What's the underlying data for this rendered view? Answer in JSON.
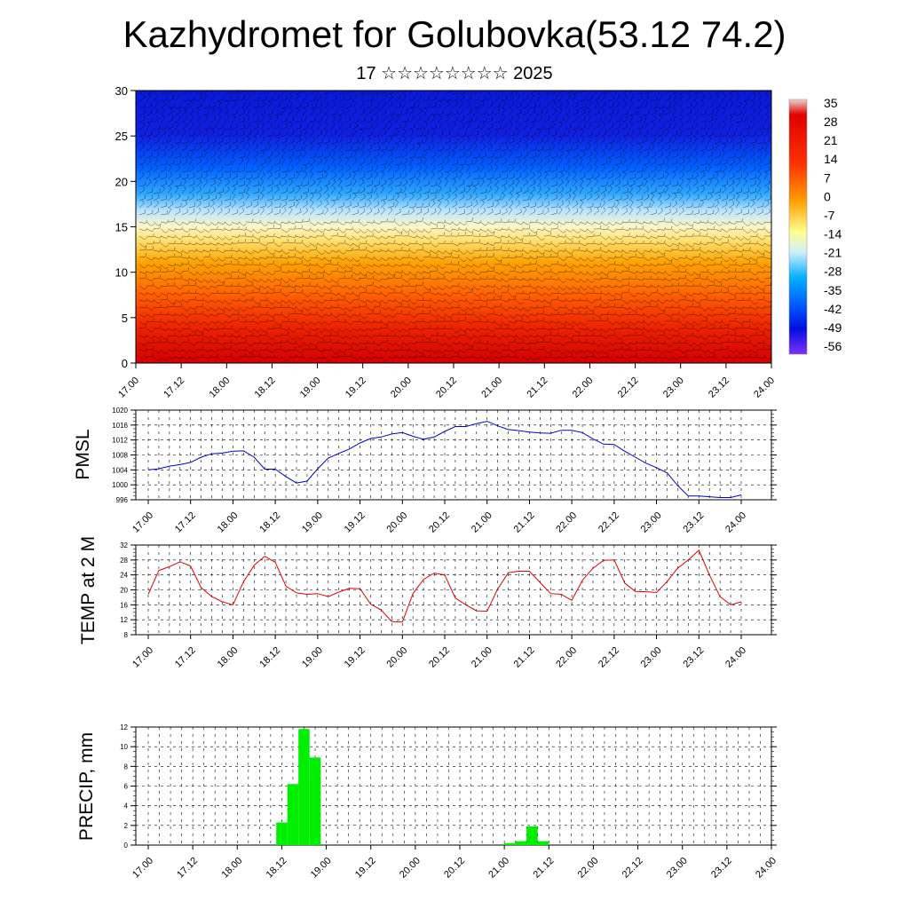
{
  "title": "Kazhydromet for Golubovka(53.12 74.2)",
  "subtitle": "17 ☆☆☆☆☆☆☆☆ 2025",
  "time_labels": [
    "17.00",
    "17.12",
    "18.00",
    "18.12",
    "19.00",
    "19.12",
    "20.00",
    "20.12",
    "21.00",
    "21.12",
    "22.00",
    "22.12",
    "23.00",
    "23.12",
    "24.00"
  ],
  "colors": {
    "pmsl_line": "#0000cc",
    "temp_line": "#dd0000",
    "precip_bar": "#00ee00",
    "grid": "#000000"
  },
  "chart_data": [
    {
      "type": "heatmap",
      "name": "vertical-cross-section",
      "ylim": [
        0,
        30
      ],
      "yticks": [
        0,
        5,
        10,
        15,
        20,
        25,
        30
      ],
      "colorbar": {
        "labels": [
          "35",
          "28",
          "21",
          "14",
          "7",
          "0",
          "-7",
          "-14",
          "-21",
          "-28",
          "-35",
          "-42",
          "-49",
          "-56"
        ],
        "colors": [
          "#f0f0f0",
          "#e00000",
          "#ff6a00",
          "#ffd400",
          "#ffff99",
          "#8fd8ff",
          "#00a0ff",
          "#0050ff",
          "#0000d8",
          "#8000ff"
        ]
      },
      "overlay": "wind barbs"
    },
    {
      "type": "line",
      "name": "pmsl",
      "ylabel": "PMSL",
      "ylim": [
        996,
        1020
      ],
      "yticks": [
        996,
        1000,
        1004,
        1008,
        1012,
        1016,
        1020
      ],
      "x": [
        0,
        0.125,
        0.25,
        0.375,
        0.5,
        0.625,
        0.75,
        0.875,
        1,
        1.125,
        1.25,
        1.375,
        1.5,
        1.625,
        1.75,
        1.875,
        2,
        2.125,
        2.25,
        2.375,
        2.5,
        2.625,
        2.75,
        2.875,
        3,
        3.125,
        3.25,
        3.375,
        3.5,
        3.625,
        3.75,
        3.875,
        4,
        4.125,
        4.25,
        4.375,
        4.5,
        4.625,
        4.75,
        4.875,
        5,
        5.125,
        5.25,
        5.375,
        5.5,
        5.625,
        5.75,
        5.875,
        6,
        6.125,
        6.25,
        6.375,
        6.5,
        6.625,
        6.75,
        6.875,
        7
      ],
      "values": [
        1004.0,
        1004.3,
        1005.0,
        1005.4,
        1006.0,
        1007.4,
        1008.3,
        1008.5,
        1009.0,
        1009.1,
        1007.4,
        1004.2,
        1004.2,
        1002.2,
        1000.5,
        1001.0,
        1004.3,
        1007.2,
        1008.4,
        1009.6,
        1011.2,
        1012.4,
        1012.8,
        1013.6,
        1014.0,
        1013.0,
        1012.2,
        1012.8,
        1014.3,
        1015.6,
        1015.6,
        1016.4,
        1017.0,
        1015.8,
        1014.8,
        1014.5,
        1014.1,
        1013.9,
        1013.8,
        1014.6,
        1014.6,
        1014.0,
        1012.3,
        1010.9,
        1010.8,
        1009.0,
        1007.4,
        1005.8,
        1004.6,
        1003.2,
        999.8,
        997.0,
        997.0,
        996.8,
        996.6,
        996.6,
        997.3
      ]
    },
    {
      "type": "line",
      "name": "temp",
      "ylabel": "TEMP at 2 M",
      "ylim": [
        8,
        32
      ],
      "yticks": [
        8,
        12,
        16,
        20,
        24,
        28,
        32
      ],
      "x": [
        0,
        0.125,
        0.25,
        0.375,
        0.5,
        0.625,
        0.75,
        0.875,
        1,
        1.125,
        1.25,
        1.375,
        1.5,
        1.625,
        1.75,
        1.875,
        2,
        2.125,
        2.25,
        2.375,
        2.5,
        2.625,
        2.75,
        2.875,
        3,
        3.125,
        3.25,
        3.375,
        3.5,
        3.625,
        3.75,
        3.875,
        4,
        4.125,
        4.25,
        4.375,
        4.5,
        4.625,
        4.75,
        4.875,
        5,
        5.125,
        5.25,
        5.375,
        5.5,
        5.625,
        5.75,
        5.875,
        6,
        6.125,
        6.25,
        6.375,
        6.5,
        6.625,
        6.75,
        6.875,
        7
      ],
      "values": [
        18.8,
        25.2,
        26.2,
        27.5,
        26.4,
        20.6,
        18.2,
        16.8,
        16.0,
        22.2,
        26.6,
        29.0,
        27.4,
        21.0,
        19.2,
        18.8,
        19.0,
        18.2,
        19.4,
        20.4,
        20.3,
        16.2,
        14.6,
        11.5,
        11.4,
        19.0,
        22.8,
        24.5,
        24.0,
        17.8,
        16.0,
        14.4,
        14.3,
        20.2,
        24.6,
        25.0,
        25.0,
        22.0,
        19.0,
        18.8,
        17.2,
        22.6,
        25.8,
        27.9,
        28.0,
        21.8,
        19.6,
        19.5,
        19.3,
        22.2,
        25.8,
        28.0,
        30.6,
        24.0,
        18.2,
        16.0,
        16.8
      ]
    },
    {
      "type": "bar",
      "name": "precip",
      "ylabel": "PRECIP, mm",
      "ylim": [
        0,
        12
      ],
      "yticks": [
        0,
        2,
        4,
        6,
        8,
        10,
        12
      ],
      "x": [
        1.5,
        1.625,
        1.75,
        1.875,
        4.0625,
        4.1875,
        4.3125,
        4.4375
      ],
      "values": [
        2.3,
        6.2,
        11.8,
        8.9,
        0.2,
        0.4,
        1.9,
        0.4
      ]
    }
  ]
}
